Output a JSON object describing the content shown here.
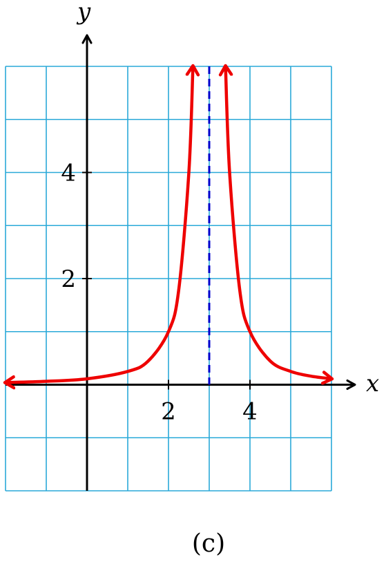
{
  "chart_data": {
    "type": "line",
    "title": "",
    "caption": "(c)",
    "xlabel": "x",
    "ylabel": "y",
    "xlim": [
      -2,
      6
    ],
    "ylim": [
      -2,
      6
    ],
    "grid": true,
    "grid_step": 1,
    "x_tick_labels": [
      {
        "value": 2,
        "label": "2"
      },
      {
        "value": 4,
        "label": "4"
      }
    ],
    "y_tick_labels": [
      {
        "value": 2,
        "label": "2"
      },
      {
        "value": 4,
        "label": "4"
      }
    ],
    "asymptote": {
      "x": 3,
      "style": "dashed"
    },
    "series": [
      {
        "branch": "left",
        "x": [
          -2,
          -1,
          0,
          1,
          1.5,
          2,
          2.25,
          2.5,
          2.6
        ],
        "y": [
          0.04,
          0.063,
          0.111,
          0.25,
          0.444,
          1,
          1.778,
          4,
          6.25
        ],
        "arrow_both_ends": true
      },
      {
        "branch": "right",
        "x": [
          3.4,
          3.5,
          3.75,
          4,
          4.5,
          5,
          5.5,
          6
        ],
        "y": [
          6.25,
          4,
          1.778,
          1,
          0.444,
          0.25,
          0.16,
          0.111
        ],
        "arrow_both_ends": true
      }
    ],
    "colors": {
      "curve": "#ee0000",
      "asymptote": "#0000cc",
      "grid": "#29a9d8",
      "axes": "#000000"
    }
  }
}
